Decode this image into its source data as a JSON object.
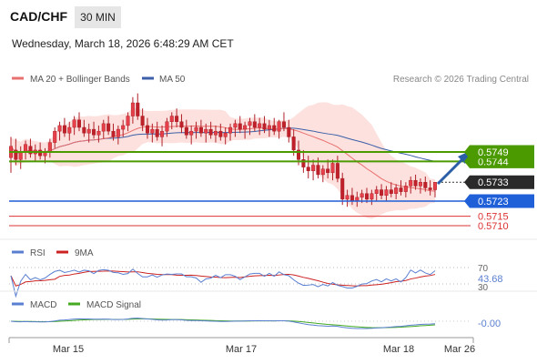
{
  "header": {
    "pair": "CAD/CHF",
    "timeframe": "30 MIN",
    "datetime": "Wednesday, March 18, 2026 6:48:29 AM CET"
  },
  "legend": {
    "ma20_label": "MA 20 + Bollinger Bands",
    "ma50_label": "MA 50",
    "credit": "Research © 2026 Trading Central"
  },
  "colors": {
    "up": "#e8404a",
    "down": "#e8404a",
    "ma20": "#e8706f",
    "ma50": "#3b5fa8",
    "bollinger_fill": "#fddad6",
    "resistance": "#4a9a00",
    "support_blue": "#1f5fd8",
    "support_red": "#d33",
    "arrow": "#2a5fa8",
    "rsi": "#5a7fd0",
    "rsi_ma": "#cc2222",
    "macd": "#5a7fd0",
    "macd_signal": "#44aa22"
  },
  "chart_data": [
    {
      "type": "candlestick",
      "title": "CAD/CHF 30 MIN",
      "ylim": [
        0.57,
        0.579
      ],
      "x_ticks": [
        "Mar 15",
        "Mar 17",
        "Mar 18",
        "Mar 26"
      ],
      "series_legend": [
        "MA 20 + Bollinger Bands",
        "MA 50"
      ],
      "levels": [
        {
          "label": "0.5749",
          "value": 0.5749,
          "kind": "resistance"
        },
        {
          "label": "0.5744",
          "value": 0.5744,
          "kind": "resistance"
        },
        {
          "label": "0.5733",
          "value": 0.5733,
          "kind": "last_price"
        },
        {
          "label": "0.5723",
          "value": 0.5723,
          "kind": "support"
        },
        {
          "label": "0.5715",
          "value": 0.5715,
          "kind": "support"
        },
        {
          "label": "0.5710",
          "value": 0.571,
          "kind": "support"
        }
      ],
      "candles": [
        [
          0.5746,
          0.5757,
          0.5738,
          0.5752
        ],
        [
          0.575,
          0.5756,
          0.5742,
          0.5745
        ],
        [
          0.5745,
          0.5752,
          0.574,
          0.5749
        ],
        [
          0.5749,
          0.5755,
          0.5745,
          0.5753
        ],
        [
          0.5752,
          0.5756,
          0.5746,
          0.5748
        ],
        [
          0.5748,
          0.5753,
          0.5744,
          0.575
        ],
        [
          0.575,
          0.5754,
          0.5745,
          0.5747
        ],
        [
          0.5747,
          0.5751,
          0.5743,
          0.5749
        ],
        [
          0.5749,
          0.5756,
          0.5746,
          0.5754
        ],
        [
          0.5754,
          0.5762,
          0.5751,
          0.576
        ],
        [
          0.576,
          0.5765,
          0.5755,
          0.5763
        ],
        [
          0.5763,
          0.5767,
          0.5757,
          0.5759
        ],
        [
          0.5759,
          0.5765,
          0.5755,
          0.5762
        ],
        [
          0.5762,
          0.5768,
          0.5758,
          0.5766
        ],
        [
          0.5766,
          0.577,
          0.576,
          0.5762
        ],
        [
          0.5762,
          0.5766,
          0.5757,
          0.5759
        ],
        [
          0.5759,
          0.5764,
          0.5754,
          0.5761
        ],
        [
          0.5761,
          0.5765,
          0.5756,
          0.5758
        ],
        [
          0.5758,
          0.5763,
          0.5754,
          0.576
        ],
        [
          0.576,
          0.5766,
          0.5756,
          0.5764
        ],
        [
          0.5764,
          0.5768,
          0.5758,
          0.576
        ],
        [
          0.576,
          0.5764,
          0.5755,
          0.5757
        ],
        [
          0.5757,
          0.5763,
          0.5753,
          0.5761
        ],
        [
          0.5761,
          0.5766,
          0.5757,
          0.5763
        ],
        [
          0.5763,
          0.577,
          0.576,
          0.5768
        ],
        [
          0.5768,
          0.5778,
          0.5764,
          0.5775
        ],
        [
          0.5775,
          0.578,
          0.5766,
          0.5768
        ],
        [
          0.5768,
          0.5772,
          0.576,
          0.5763
        ],
        [
          0.5763,
          0.5767,
          0.5756,
          0.5759
        ],
        [
          0.5759,
          0.5764,
          0.5754,
          0.5761
        ],
        [
          0.5761,
          0.5765,
          0.5755,
          0.5757
        ],
        [
          0.5757,
          0.5763,
          0.5752,
          0.576
        ],
        [
          0.576,
          0.5767,
          0.5757,
          0.5765
        ],
        [
          0.5765,
          0.577,
          0.5761,
          0.5768
        ],
        [
          0.5768,
          0.5772,
          0.5762,
          0.5765
        ],
        [
          0.5765,
          0.5769,
          0.5759,
          0.5762
        ],
        [
          0.5762,
          0.5766,
          0.5756,
          0.5758
        ],
        [
          0.5758,
          0.5763,
          0.5753,
          0.576
        ],
        [
          0.576,
          0.5765,
          0.5756,
          0.5762
        ],
        [
          0.5762,
          0.5766,
          0.5757,
          0.5759
        ],
        [
          0.5759,
          0.5764,
          0.5754,
          0.5761
        ],
        [
          0.5761,
          0.5765,
          0.5756,
          0.5758
        ],
        [
          0.5758,
          0.5763,
          0.5754,
          0.576
        ],
        [
          0.576,
          0.5764,
          0.5755,
          0.5757
        ],
        [
          0.5757,
          0.5762,
          0.5753,
          0.5759
        ],
        [
          0.5759,
          0.5764,
          0.5755,
          0.5762
        ],
        [
          0.5762,
          0.5766,
          0.5757,
          0.5764
        ],
        [
          0.5764,
          0.5768,
          0.5759,
          0.5761
        ],
        [
          0.5761,
          0.5765,
          0.5756,
          0.5763
        ],
        [
          0.5763,
          0.5767,
          0.5758,
          0.5765
        ],
        [
          0.5765,
          0.5769,
          0.576,
          0.5762
        ],
        [
          0.5762,
          0.5767,
          0.5758,
          0.5764
        ],
        [
          0.5764,
          0.5768,
          0.5759,
          0.5761
        ],
        [
          0.5761,
          0.5766,
          0.5757,
          0.5763
        ],
        [
          0.5763,
          0.5767,
          0.5758,
          0.576
        ],
        [
          0.576,
          0.5766,
          0.5756,
          0.5765
        ],
        [
          0.5765,
          0.577,
          0.576,
          0.5762
        ],
        [
          0.5762,
          0.5766,
          0.5754,
          0.5757
        ],
        [
          0.5757,
          0.5761,
          0.5747,
          0.575
        ],
        [
          0.575,
          0.5755,
          0.5742,
          0.5745
        ],
        [
          0.5745,
          0.575,
          0.5738,
          0.5741
        ],
        [
          0.5741,
          0.5747,
          0.5735,
          0.5739
        ],
        [
          0.5739,
          0.5745,
          0.5734,
          0.5742
        ],
        [
          0.5742,
          0.5746,
          0.5735,
          0.5737
        ],
        [
          0.5737,
          0.5742,
          0.5733,
          0.574
        ],
        [
          0.574,
          0.5745,
          0.5735,
          0.5738
        ],
        [
          0.5738,
          0.5745,
          0.5734,
          0.5743
        ],
        [
          0.5743,
          0.5747,
          0.5733,
          0.5735
        ],
        [
          0.5735,
          0.5738,
          0.5721,
          0.5724
        ],
        [
          0.5724,
          0.5729,
          0.572,
          0.5726
        ],
        [
          0.5726,
          0.573,
          0.5721,
          0.5723
        ],
        [
          0.5723,
          0.5728,
          0.572,
          0.5725
        ],
        [
          0.5725,
          0.5729,
          0.5722,
          0.5727
        ],
        [
          0.5727,
          0.573,
          0.5722,
          0.5724
        ],
        [
          0.5724,
          0.5729,
          0.5721,
          0.5727
        ],
        [
          0.5727,
          0.5731,
          0.5723,
          0.5729
        ],
        [
          0.5729,
          0.5732,
          0.5724,
          0.5726
        ],
        [
          0.5726,
          0.5731,
          0.5723,
          0.5729
        ],
        [
          0.5729,
          0.5733,
          0.5725,
          0.5727
        ],
        [
          0.5727,
          0.5732,
          0.5724,
          0.573
        ],
        [
          0.573,
          0.5734,
          0.5726,
          0.5728
        ],
        [
          0.5728,
          0.5733,
          0.5725,
          0.5731
        ],
        [
          0.5731,
          0.5736,
          0.5727,
          0.5734
        ],
        [
          0.5734,
          0.5737,
          0.5729,
          0.5731
        ],
        [
          0.5731,
          0.5735,
          0.5727,
          0.5733
        ],
        [
          0.5733,
          0.5736,
          0.5728,
          0.573
        ],
        [
          0.573,
          0.5734,
          0.5726,
          0.5729
        ],
        [
          0.5729,
          0.5733,
          0.5725,
          0.5733
        ]
      ]
    },
    {
      "type": "line",
      "title": "RSI",
      "series": [
        {
          "name": "RSI"
        },
        {
          "name": "9MA"
        }
      ],
      "ylim": [
        0,
        100
      ],
      "levels": [
        "70",
        "43.68",
        "30"
      ],
      "last_value": 43.68
    },
    {
      "type": "line",
      "title": "MACD",
      "series": [
        {
          "name": "MACD"
        },
        {
          "name": "MACD Signal"
        }
      ],
      "last_value": "-0.00"
    }
  ]
}
